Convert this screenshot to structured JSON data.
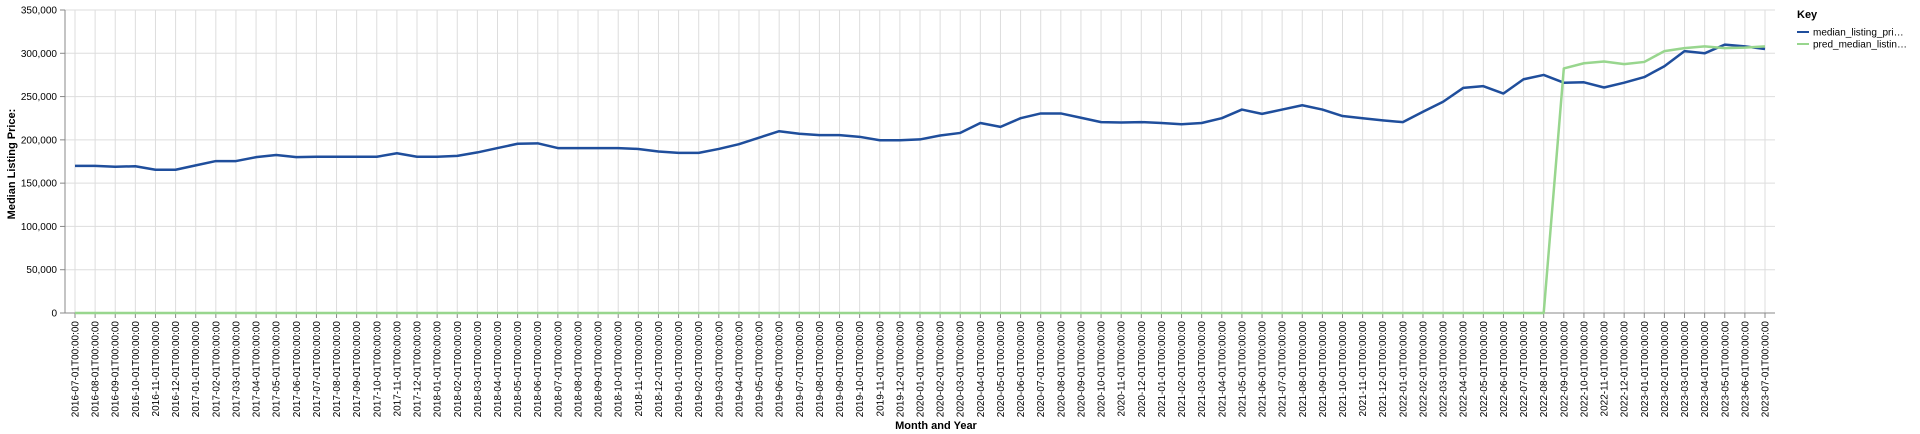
{
  "chart_data": {
    "type": "line",
    "title": "",
    "xlabel": "Month and Year",
    "ylabel": "Median Listing Price:",
    "ylim": [
      0,
      350000
    ],
    "y_ticks": [
      0,
      50000,
      100000,
      150000,
      200000,
      250000,
      300000,
      350000
    ],
    "y_tick_labels": [
      "0",
      "50,000",
      "100,000",
      "150,000",
      "200,000",
      "250,000",
      "300,000",
      "350,000"
    ],
    "grid": true,
    "legend": {
      "title": "Key",
      "placement": "top-right"
    },
    "x": [
      "2016-07-01T00:00:00",
      "2016-08-01T00:00:00",
      "2016-09-01T00:00:00",
      "2016-10-01T00:00:00",
      "2016-11-01T00:00:00",
      "2016-12-01T00:00:00",
      "2017-01-01T00:00:00",
      "2017-02-01T00:00:00",
      "2017-03-01T00:00:00",
      "2017-04-01T00:00:00",
      "2017-05-01T00:00:00",
      "2017-06-01T00:00:00",
      "2017-07-01T00:00:00",
      "2017-08-01T00:00:00",
      "2017-09-01T00:00:00",
      "2017-10-01T00:00:00",
      "2017-11-01T00:00:00",
      "2017-12-01T00:00:00",
      "2018-01-01T00:00:00",
      "2018-02-01T00:00:00",
      "2018-03-01T00:00:00",
      "2018-04-01T00:00:00",
      "2018-05-01T00:00:00",
      "2018-06-01T00:00:00",
      "2018-07-01T00:00:00",
      "2018-08-01T00:00:00",
      "2018-09-01T00:00:00",
      "2018-10-01T00:00:00",
      "2018-11-01T00:00:00",
      "2018-12-01T00:00:00",
      "2019-01-01T00:00:00",
      "2019-02-01T00:00:00",
      "2019-03-01T00:00:00",
      "2019-04-01T00:00:00",
      "2019-05-01T00:00:00",
      "2019-06-01T00:00:00",
      "2019-07-01T00:00:00",
      "2019-08-01T00:00:00",
      "2019-09-01T00:00:00",
      "2019-10-01T00:00:00",
      "2019-11-01T00:00:00",
      "2019-12-01T00:00:00",
      "2020-01-01T00:00:00",
      "2020-02-01T00:00:00",
      "2020-03-01T00:00:00",
      "2020-04-01T00:00:00",
      "2020-05-01T00:00:00",
      "2020-06-01T00:00:00",
      "2020-07-01T00:00:00",
      "2020-08-01T00:00:00",
      "2020-09-01T00:00:00",
      "2020-10-01T00:00:00",
      "2020-11-01T00:00:00",
      "2020-12-01T00:00:00",
      "2021-01-01T00:00:00",
      "2021-02-01T00:00:00",
      "2021-03-01T00:00:00",
      "2021-04-01T00:00:00",
      "2021-05-01T00:00:00",
      "2021-06-01T00:00:00",
      "2021-07-01T00:00:00",
      "2021-08-01T00:00:00",
      "2021-09-01T00:00:00",
      "2021-10-01T00:00:00",
      "2021-11-01T00:00:00",
      "2021-12-01T00:00:00",
      "2022-01-01T00:00:00",
      "2022-02-01T00:00:00",
      "2022-03-01T00:00:00",
      "2022-04-01T00:00:00",
      "2022-05-01T00:00:00",
      "2022-06-01T00:00:00",
      "2022-07-01T00:00:00",
      "2022-08-01T00:00:00",
      "2022-09-01T00:00:00",
      "2022-10-01T00:00:00",
      "2022-11-01T00:00:00",
      "2022-12-01T00:00:00",
      "2023-01-01T00:00:00",
      "2023-02-01T00:00:00",
      "2023-03-01T00:00:00",
      "2023-04-01T00:00:00",
      "2023-05-01T00:00:00",
      "2023-06-01T00:00:00",
      "2023-07-01T00:00:00"
    ],
    "series": [
      {
        "name": "median_listing_pri…",
        "color": "#1f4e9c",
        "values": [
          170000,
          170000,
          169000,
          169500,
          165500,
          165500,
          170500,
          175500,
          175500,
          180000,
          182500,
          180000,
          180500,
          180500,
          180500,
          180500,
          184500,
          180500,
          180500,
          181500,
          185500,
          190500,
          195500,
          196000,
          190500,
          190500,
          190500,
          190500,
          189500,
          186500,
          185000,
          185000,
          189500,
          195000,
          202500,
          210000,
          207000,
          205500,
          205500,
          203500,
          199500,
          199500,
          200500,
          205000,
          208000,
          219500,
          215000,
          225000,
          230500,
          230500,
          225500,
          220500,
          220000,
          220500,
          219500,
          218000,
          219500,
          225000,
          235000,
          230000,
          235000,
          240000,
          235000,
          227500,
          225000,
          222500,
          220500,
          232500,
          244000,
          260000,
          262000,
          253500,
          270000,
          275000,
          266000,
          266500,
          260500,
          266000,
          272500,
          285000,
          302500,
          300000,
          310000,
          308000,
          305000
        ]
      },
      {
        "name": "pred_median_listin…",
        "color": "#98d68e",
        "values": [
          0,
          0,
          0,
          0,
          0,
          0,
          0,
          0,
          0,
          0,
          0,
          0,
          0,
          0,
          0,
          0,
          0,
          0,
          0,
          0,
          0,
          0,
          0,
          0,
          0,
          0,
          0,
          0,
          0,
          0,
          0,
          0,
          0,
          0,
          0,
          0,
          0,
          0,
          0,
          0,
          0,
          0,
          0,
          0,
          0,
          0,
          0,
          0,
          0,
          0,
          0,
          0,
          0,
          0,
          0,
          0,
          0,
          0,
          0,
          0,
          0,
          0,
          0,
          0,
          0,
          0,
          0,
          0,
          0,
          0,
          0,
          0,
          0,
          0,
          282500,
          288500,
          290500,
          287500,
          290000,
          302500,
          306000,
          308000,
          306000,
          306500,
          308000
        ]
      }
    ]
  }
}
